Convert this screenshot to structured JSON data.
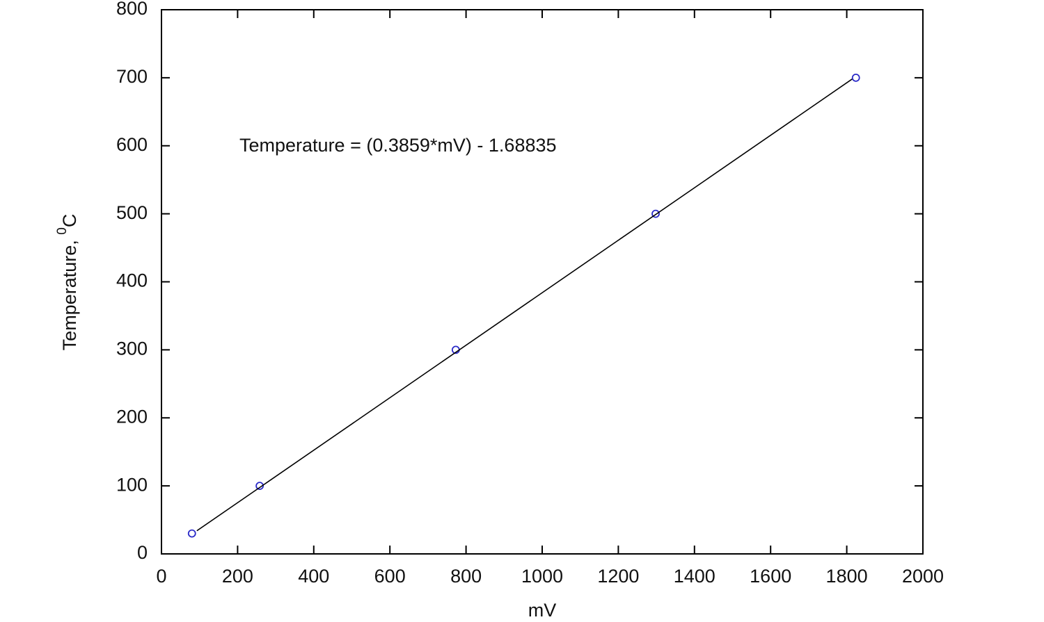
{
  "chart_data": {
    "type": "scatter",
    "xlabel": "mV",
    "ylabel": [
      "Temperature, ",
      "0",
      "C"
    ],
    "annotation": "Temperature = (0.3859*mV) - 1.68835",
    "xlim": [
      0,
      2000
    ],
    "ylim": [
      0,
      800
    ],
    "xticks": [
      0,
      200,
      400,
      600,
      800,
      1000,
      1200,
      1400,
      1600,
      1800,
      2000
    ],
    "yticks": [
      0,
      100,
      200,
      300,
      400,
      500,
      600,
      700,
      800
    ],
    "series": [
      {
        "mode": "markers",
        "color": "#2a2ac8",
        "x": [
          80,
          258,
          773,
          1298,
          1824
        ],
        "values": [
          30,
          100,
          300,
          500,
          700
        ]
      },
      {
        "mode": "line",
        "color": "#000000",
        "x": [
          93,
          1814
        ],
        "values": [
          34,
          698
        ]
      }
    ]
  }
}
